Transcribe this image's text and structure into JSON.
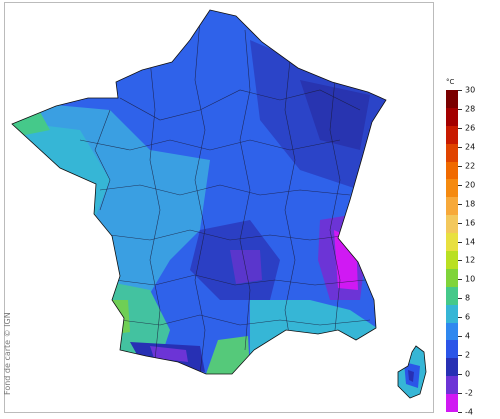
{
  "map": {
    "credit": "Fond de carte © IGN",
    "region": "France"
  },
  "legend": {
    "unit": "°C",
    "ticks": [
      "30",
      "28",
      "26",
      "24",
      "22",
      "20",
      "18",
      "16",
      "14",
      "12",
      "10",
      "8",
      "6",
      "4",
      "2",
      "0",
      "-2",
      "-4"
    ],
    "colors": [
      "#7a0000",
      "#a30000",
      "#c81a00",
      "#e04400",
      "#f06a00",
      "#f58a10",
      "#f7a93a",
      "#f3c85c",
      "#e8e040",
      "#b9e022",
      "#7fd43a",
      "#45c98a",
      "#36b6d6",
      "#2f88ef",
      "#2b55e8",
      "#2730b4",
      "#6c34d6",
      "#d019f3"
    ]
  }
}
